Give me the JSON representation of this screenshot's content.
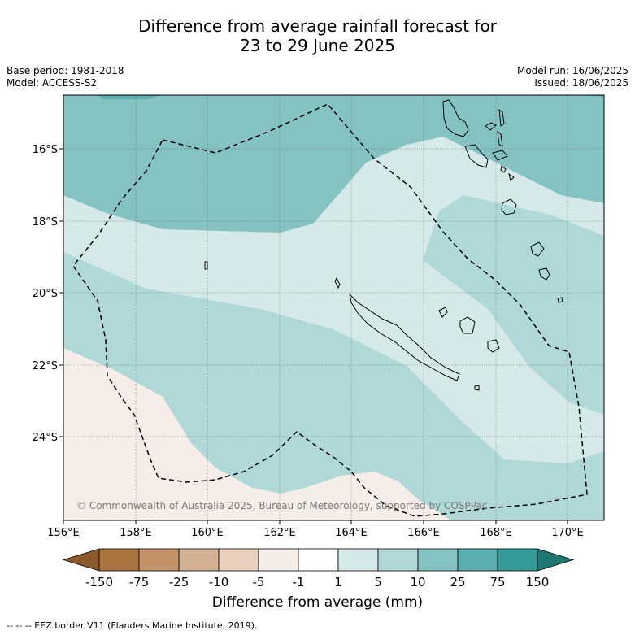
{
  "title": {
    "line1": "Difference from average rainfall forecast for",
    "line2": "23 to 29 June 2025"
  },
  "meta_left": {
    "base_period": "Base period: 1981-2018",
    "model": "Model: ACCESS-S2"
  },
  "meta_right": {
    "model_run": "Model run: 16/06/2025",
    "issued": "Issued: 18/06/2025"
  },
  "map": {
    "lat_labels": [
      "16°S",
      "18°S",
      "20°S",
      "22°S",
      "24°S"
    ],
    "lon_labels": [
      "156°E",
      "158°E",
      "160°E",
      "162°E",
      "164°E",
      "166°E",
      "168°E",
      "170°E"
    ],
    "copyright": "© Commonwealth of Australia 2025, Bureau of Meteorology, supported by COSPPac"
  },
  "colorbar": {
    "ticks": [
      "-150",
      "-75",
      "-25",
      "-10",
      "-5",
      "-1",
      "1",
      "5",
      "10",
      "25",
      "75",
      "150"
    ],
    "colors": {
      "lt_-150": "#8a5a2b",
      "-150_-75": "#aa7440",
      "-75_-25": "#c39469",
      "-25_-10": "#d6b295",
      "-10_-5": "#e8d2be",
      "-5_-1": "#f5ede7",
      "-1_1": "#ffffff",
      "1_5": "#d5eae8",
      "5_10": "#afd8d7",
      "10_25": "#85c3c2",
      "25_75": "#5baeae",
      "75_150": "#349c98",
      "gt_150": "#1f7773"
    },
    "title": "Difference from average (mm)"
  },
  "legend_note": "--  --  -- EEZ border V11 (Flanders Marine Institute, 2019)."
}
